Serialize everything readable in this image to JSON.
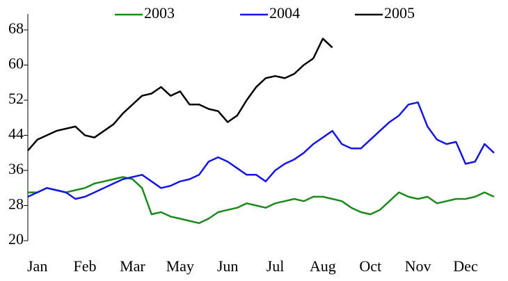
{
  "chart_data": {
    "type": "line",
    "categories": [
      null,
      "Jan",
      null,
      null,
      null,
      null,
      "Feb",
      null,
      null,
      null,
      null,
      "Mar",
      null,
      null,
      null,
      null,
      "May",
      null,
      null,
      null,
      null,
      "Jun",
      null,
      null,
      null,
      null,
      "Jul",
      null,
      null,
      null,
      null,
      "Aug",
      null,
      null,
      null,
      null,
      "Oct",
      null,
      null,
      null,
      null,
      "Nov",
      null,
      null,
      null,
      null,
      "Dec",
      null,
      null,
      null
    ],
    "series": [
      {
        "name": "2003",
        "color": "#1a8a1a",
        "values": [
          31,
          31,
          32,
          31.5,
          31,
          31.5,
          32,
          33,
          33.5,
          34,
          34.5,
          34,
          32,
          26,
          26.5,
          25.5,
          25,
          24.5,
          24,
          25,
          26.5,
          27,
          27.5,
          28.5,
          28,
          27.5,
          28.5,
          29,
          29.5,
          29,
          30,
          30,
          29.5,
          29,
          27.5,
          26.5,
          26,
          27,
          29,
          31,
          30,
          29.5,
          30,
          28.5,
          29,
          29.5,
          29.5,
          30,
          31,
          30
        ]
      },
      {
        "name": "2004",
        "color": "#1414e6",
        "values": [
          30,
          31,
          32,
          31.5,
          31,
          29.5,
          30,
          31,
          32,
          33,
          34,
          34.5,
          35,
          33.5,
          32,
          32.5,
          33.5,
          34,
          35,
          38,
          39,
          38,
          36.5,
          35,
          35,
          33.5,
          36,
          37.5,
          38.5,
          40,
          42,
          43.5,
          45,
          42,
          41,
          41,
          43,
          45,
          47,
          48.5,
          51,
          51.5,
          46,
          43,
          42,
          42.5,
          37.5,
          38,
          42,
          40
        ]
      },
      {
        "name": "2005",
        "color": "#000000",
        "values": [
          40.5,
          43,
          44,
          45,
          45.5,
          46,
          44,
          43.5,
          45,
          46.5,
          49,
          51,
          53,
          53.5,
          55,
          53,
          54,
          51,
          51,
          50,
          49.5,
          47,
          48.5,
          52,
          55,
          57,
          57.5,
          57,
          58,
          60,
          61.5,
          66,
          64,
          null,
          null,
          null,
          null,
          null,
          null,
          null,
          null,
          null,
          null,
          null,
          null,
          null,
          null,
          null,
          null,
          null
        ]
      }
    ],
    "ylim": [
      20,
      68
    ],
    "yticks": [
      20,
      28,
      36,
      44,
      52,
      60,
      68
    ],
    "legend": "top"
  }
}
